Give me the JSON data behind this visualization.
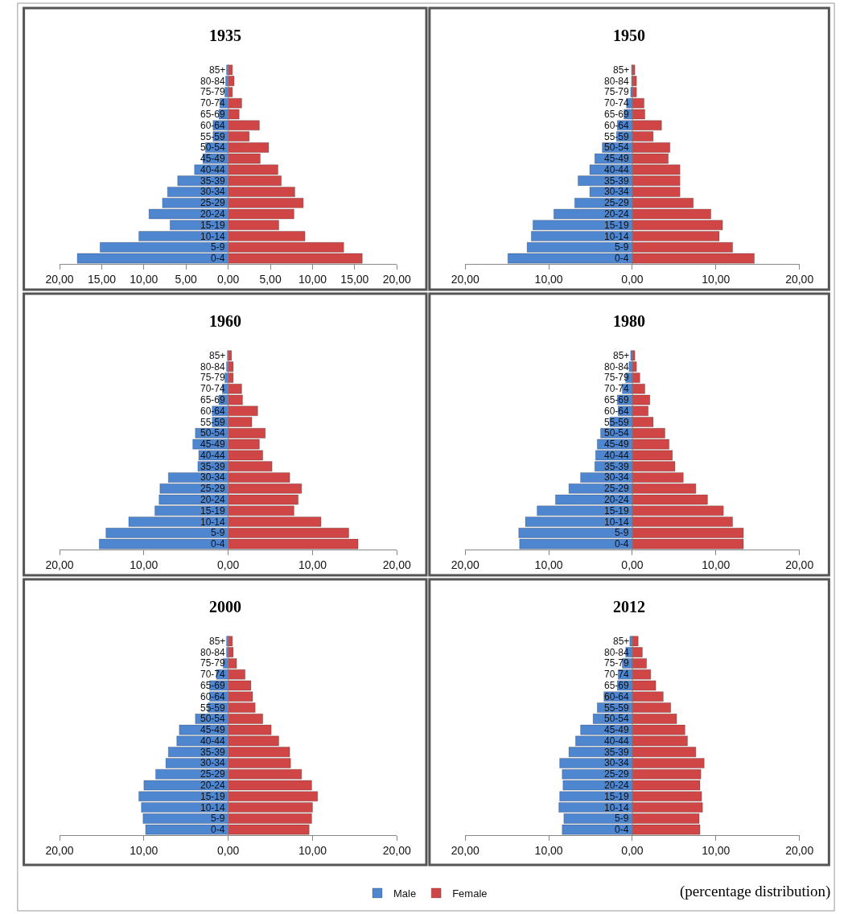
{
  "chart_data": [
    {
      "type": "bar",
      "orientation": "horizontal",
      "title": "1935",
      "stacked": true,
      "categories": [
        "85+",
        "80-84",
        "75-79",
        "70-74",
        "65-69",
        "60-64",
        "55-59",
        "50-54",
        "45-49",
        "40-44",
        "35-39",
        "30-34",
        "25-29",
        "20-24",
        "15-19",
        "10-14",
        "5-9",
        "0-4"
      ],
      "series": [
        {
          "color": "#4f86d0",
          "values": [
            -0.2,
            -0.3,
            -0.4,
            -1.0,
            -1.1,
            -1.8,
            -1.8,
            -2.7,
            -3.0,
            -4.0,
            -6.0,
            -7.2,
            -7.8,
            -9.4,
            -6.9,
            -10.6,
            -15.2,
            -17.9
          ]
        },
        {
          "color": "#d04545",
          "values": [
            0.5,
            0.7,
            0.5,
            1.6,
            1.3,
            3.7,
            2.5,
            4.8,
            3.8,
            5.9,
            6.3,
            7.9,
            8.9,
            7.8,
            6.0,
            9.1,
            13.7,
            15.9
          ]
        }
      ],
      "xlim": [
        -20,
        20
      ],
      "xticks": [
        {
          "value": -20,
          "label": "20,00"
        },
        {
          "value": -15,
          "label": "15,00"
        },
        {
          "value": -10,
          "label": "10,00"
        },
        {
          "value": -5,
          "label": "5,00"
        },
        {
          "value": 0,
          "label": "0,00"
        },
        {
          "value": 5,
          "label": "5,00"
        },
        {
          "value": 10,
          "label": "10,00"
        },
        {
          "value": 15,
          "label": "15,00"
        },
        {
          "value": 20,
          "label": "20,00"
        }
      ]
    },
    {
      "type": "bar",
      "orientation": "horizontal",
      "title": "1950",
      "stacked": true,
      "categories": [
        "85+",
        "80-84",
        "75-79",
        "70-74",
        "65-69",
        "60-64",
        "55-59",
        "50-54",
        "45-49",
        "40-44",
        "35-39",
        "30-34",
        "25-29",
        "20-24",
        "15-19",
        "10-14",
        "5-9",
        "0-4"
      ],
      "series": [
        {
          "color": "#4f86d0",
          "values": [
            -0.1,
            -0.1,
            -0.2,
            -0.7,
            -1.0,
            -1.8,
            -1.9,
            -3.6,
            -4.5,
            -5.1,
            -6.5,
            -5.1,
            -6.9,
            -9.4,
            -11.9,
            -12.1,
            -12.6,
            -14.9
          ]
        },
        {
          "color": "#d04545",
          "values": [
            0.3,
            0.5,
            0.5,
            1.4,
            1.5,
            3.5,
            2.5,
            4.5,
            4.3,
            5.7,
            5.7,
            5.7,
            7.3,
            9.4,
            10.8,
            10.4,
            12.0,
            14.6
          ]
        }
      ],
      "xlim": [
        -20,
        20
      ],
      "xticks": [
        {
          "value": -20,
          "label": "20,00"
        },
        {
          "value": -10,
          "label": "10,00"
        },
        {
          "value": 0,
          "label": "0,00"
        },
        {
          "value": 10,
          "label": "10,00"
        },
        {
          "value": 20,
          "label": "20,00"
        }
      ]
    },
    {
      "type": "bar",
      "orientation": "horizontal",
      "title": "1960",
      "stacked": true,
      "categories": [
        "85+",
        "80-84",
        "75-79",
        "70-74",
        "65-69",
        "60-64",
        "55-59",
        "50-54",
        "45-49",
        "40-44",
        "35-39",
        "30-34",
        "25-29",
        "20-24",
        "15-19",
        "10-14",
        "5-9",
        "0-4"
      ],
      "series": [
        {
          "color": "#4f86d0",
          "values": [
            -0.1,
            -0.2,
            -0.4,
            -0.7,
            -1.1,
            -1.9,
            -1.9,
            -3.9,
            -4.2,
            -3.5,
            -3.6,
            -7.1,
            -8.1,
            -8.2,
            -8.7,
            -11.8,
            -14.5,
            -15.3
          ]
        },
        {
          "color": "#d04545",
          "values": [
            0.4,
            0.6,
            0.6,
            1.6,
            1.7,
            3.5,
            2.8,
            4.4,
            3.7,
            4.1,
            5.2,
            7.3,
            8.7,
            8.3,
            7.8,
            11.0,
            14.3,
            15.4
          ]
        }
      ],
      "xlim": [
        -20,
        20
      ],
      "xticks": [
        {
          "value": -20,
          "label": "20,00"
        },
        {
          "value": -10,
          "label": "10,00"
        },
        {
          "value": 0,
          "label": "0,00"
        },
        {
          "value": 10,
          "label": "10,00"
        },
        {
          "value": 20,
          "label": "20,00"
        }
      ]
    },
    {
      "type": "bar",
      "orientation": "horizontal",
      "title": "1980",
      "stacked": true,
      "categories": [
        "85+",
        "80-84",
        "75-79",
        "70-74",
        "65-69",
        "60-64",
        "55-59",
        "50-54",
        "45-49",
        "40-44",
        "35-39",
        "30-34",
        "25-29",
        "20-24",
        "15-19",
        "10-14",
        "5-9",
        "0-4"
      ],
      "series": [
        {
          "color": "#4f86d0",
          "values": [
            -0.2,
            -0.4,
            -0.8,
            -1.2,
            -1.8,
            -1.7,
            -2.7,
            -3.8,
            -4.2,
            -4.4,
            -4.5,
            -6.2,
            -7.6,
            -9.2,
            -11.4,
            -12.8,
            -13.6,
            -13.5
          ]
        },
        {
          "color": "#d04545",
          "values": [
            0.3,
            0.5,
            0.9,
            1.5,
            2.1,
            1.9,
            2.5,
            3.9,
            4.4,
            4.8,
            5.1,
            6.1,
            7.6,
            9.0,
            10.9,
            12.0,
            13.3,
            13.3
          ]
        }
      ],
      "xlim": [
        -20,
        20
      ],
      "xticks": [
        {
          "value": -20,
          "label": "20,00"
        },
        {
          "value": -10,
          "label": "10,00"
        },
        {
          "value": 0,
          "label": "0,00"
        },
        {
          "value": 10,
          "label": "10,00"
        },
        {
          "value": 20,
          "label": "20,00"
        }
      ]
    },
    {
      "type": "bar",
      "orientation": "horizontal",
      "title": "2000",
      "stacked": true,
      "categories": [
        "85+",
        "80-84",
        "75-79",
        "70-74",
        "65-69",
        "60-64",
        "55-59",
        "50-54",
        "45-49",
        "40-44",
        "35-39",
        "30-34",
        "25-29",
        "20-24",
        "15-19",
        "10-14",
        "5-9",
        "0-4"
      ],
      "series": [
        {
          "color": "#4f86d0",
          "values": [
            -0.2,
            -0.2,
            -0.6,
            -1.4,
            -2.2,
            -2.2,
            -2.4,
            -3.9,
            -5.8,
            -6.1,
            -7.1,
            -7.4,
            -8.6,
            -10.0,
            -10.6,
            -10.3,
            -10.1,
            -9.8
          ]
        },
        {
          "color": "#d04545",
          "values": [
            0.5,
            0.6,
            1.0,
            2.0,
            2.7,
            2.9,
            3.2,
            4.1,
            5.1,
            6.0,
            7.3,
            7.4,
            8.7,
            9.9,
            10.6,
            10.0,
            9.9,
            9.6
          ]
        }
      ],
      "xlim": [
        -20,
        20
      ],
      "xticks": [
        {
          "value": -20,
          "label": "20,00"
        },
        {
          "value": -10,
          "label": "10,00"
        },
        {
          "value": 0,
          "label": "0,00"
        },
        {
          "value": 10,
          "label": "10,00"
        },
        {
          "value": 20,
          "label": "20,00"
        }
      ]
    },
    {
      "type": "bar",
      "orientation": "horizontal",
      "title": "2012",
      "stacked": true,
      "categories": [
        "85+",
        "80-84",
        "75-79",
        "70-74",
        "65-69",
        "60-64",
        "55-59",
        "50-54",
        "45-49",
        "40-44",
        "35-39",
        "30-34",
        "25-29",
        "20-24",
        "15-19",
        "10-14",
        "5-9",
        "0-4"
      ],
      "series": [
        {
          "name": "Male",
          "color": "#4f86d0",
          "values": [
            -0.3,
            -0.8,
            -1.2,
            -1.7,
            -1.8,
            -3.4,
            -4.2,
            -4.7,
            -6.2,
            -6.8,
            -7.6,
            -8.7,
            -8.4,
            -8.3,
            -8.7,
            -8.8,
            -8.2,
            -8.4
          ]
        },
        {
          "name": "Female",
          "color": "#d04545",
          "values": [
            0.7,
            1.2,
            1.7,
            2.2,
            2.8,
            3.7,
            4.6,
            5.3,
            6.3,
            6.6,
            7.6,
            8.6,
            8.2,
            8.1,
            8.3,
            8.4,
            8.0,
            8.1
          ]
        }
      ],
      "xlim": [
        -20,
        20
      ],
      "xticks": [
        {
          "value": -20,
          "label": "20,00"
        },
        {
          "value": -10,
          "label": "10,00"
        },
        {
          "value": 0,
          "label": "0,00"
        },
        {
          "value": 10,
          "label": "10,00"
        },
        {
          "value": 20,
          "label": "20,00"
        }
      ],
      "legend": "bottom",
      "annotations": [
        "(percentage distribution)"
      ]
    }
  ]
}
